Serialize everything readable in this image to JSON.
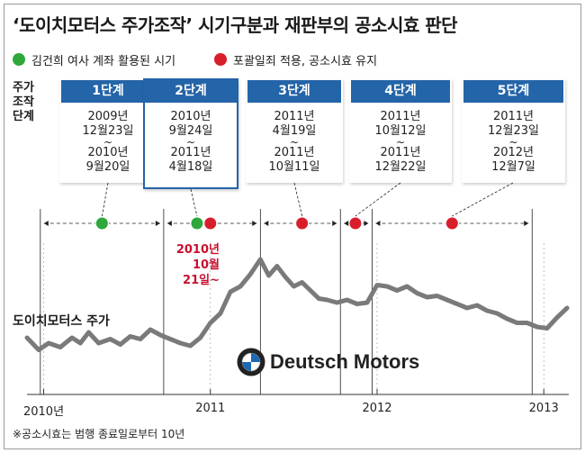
{
  "title": "‘도이치모터스 주가조작’ 시기구분과 재판부의 공소시효 판단",
  "legend": [
    {
      "label": "김건희 여사 계좌 활용된 시기",
      "color": "#2ea83a"
    },
    {
      "label": "포괄일죄 적용, 공소시효 유지",
      "color": "#d81e2c"
    }
  ],
  "row_label": {
    "line1": "주가",
    "line2": "조작",
    "line3": "단계"
  },
  "stages": [
    {
      "title": "1단계",
      "start_l1": "2009년",
      "start_l2": "12월23일",
      "tilde": "~",
      "end_l1": "2010년",
      "end_l2": "9월20일"
    },
    {
      "title": "2단계",
      "start_l1": "2010년",
      "start_l2": "9월24일",
      "tilde": "~",
      "end_l1": "2011년",
      "end_l2": "4월18일"
    },
    {
      "title": "3단계",
      "start_l1": "2011년",
      "start_l2": "4월19일",
      "tilde": "~",
      "end_l1": "2011년",
      "end_l2": "10월11일"
    },
    {
      "title": "4단계",
      "start_l1": "2011년",
      "start_l2": "10월12일",
      "tilde": "~",
      "end_l1": "2011년",
      "end_l2": "12월22일"
    },
    {
      "title": "5단계",
      "start_l1": "2011년",
      "start_l2": "12월23일",
      "tilde": "~",
      "end_l1": "2012년",
      "end_l2": "12월7일"
    }
  ],
  "annotation": {
    "line1": "2010년",
    "line2": "10월",
    "line3": "21일~"
  },
  "series_label": "도이치모터스 주가",
  "brand": "Deutsch Motors",
  "footnote": "※공소시효는 범행 종료일로부터 10년",
  "chart_data": {
    "type": "line",
    "title": "",
    "xlabel": "",
    "ylabel": "",
    "x_tick_labels": [
      "2010년",
      "2011",
      "2012",
      "2013"
    ],
    "x_ticks": [
      2010.0,
      2011.0,
      2012.0,
      2013.0
    ],
    "xlim": [
      2009.9,
      2013.15
    ],
    "ylim": [
      0,
      100
    ],
    "y_axis_shown": false,
    "grid": false,
    "series": [
      {
        "name": "",
        "color": "#7a7a7a",
        "x": [
          2009.9,
          2009.97,
          2010.03,
          2010.1,
          2010.17,
          2010.22,
          2010.27,
          2010.33,
          2010.4,
          2010.46,
          2010.52,
          2010.58,
          2010.64,
          2010.7,
          2010.76,
          2010.82,
          2010.88,
          2010.94,
          2011.0,
          2011.06,
          2011.12,
          2011.18,
          2011.24,
          2011.3,
          2011.35,
          2011.4,
          2011.45,
          2011.5,
          2011.55,
          2011.6,
          2011.65,
          2011.7,
          2011.76,
          2011.82,
          2011.88,
          2011.94,
          2012.0,
          2012.06,
          2012.12,
          2012.18,
          2012.24,
          2012.3,
          2012.36,
          2012.42,
          2012.48,
          2012.54,
          2012.6,
          2012.66,
          2012.72,
          2012.78,
          2012.84,
          2012.9,
          2012.96,
          2013.02,
          2013.08,
          2013.14
        ],
        "values": [
          22,
          13,
          18,
          15,
          22,
          18,
          26,
          18,
          21,
          17,
          23,
          21,
          28,
          24,
          21,
          18,
          16,
          22,
          33,
          40,
          56,
          60,
          69,
          80,
          68,
          75,
          67,
          60,
          63,
          57,
          51,
          50,
          48,
          50,
          47,
          48,
          61,
          60,
          57,
          60,
          55,
          52,
          53,
          50,
          47,
          44,
          46,
          42,
          40,
          36,
          33,
          33,
          30,
          29,
          37,
          44
        ]
      }
    ],
    "stage_boundaries": [
      2009.98,
      2010.72,
      2011.3,
      2011.78,
      2011.97,
      2012.93
    ],
    "markers": [
      {
        "x": 2010.35,
        "color": "#2ea83a"
      },
      {
        "x": 2010.92,
        "color": "#2ea83a"
      },
      {
        "x": 2011.0,
        "color": "#d81e2c"
      },
      {
        "x": 2011.55,
        "color": "#d81e2c"
      },
      {
        "x": 2011.87,
        "color": "#d81e2c"
      },
      {
        "x": 2012.45,
        "color": "#d81e2c"
      }
    ]
  }
}
